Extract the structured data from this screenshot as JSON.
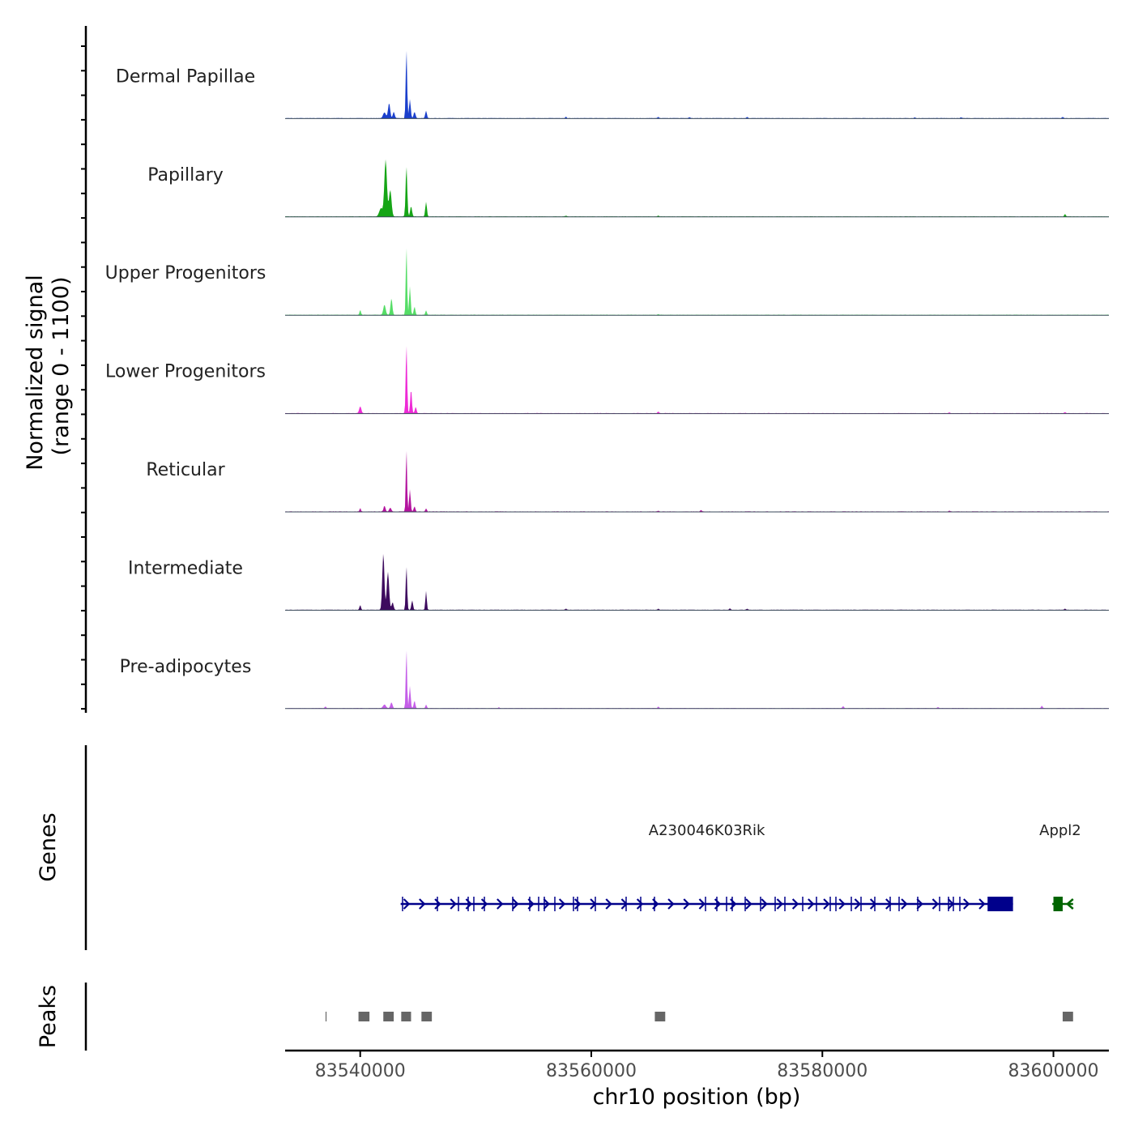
{
  "chart_data": {
    "type": "area",
    "title": "",
    "ylabel_line1": "Normalized signal",
    "ylabel_line2": "(range 0 - 1100)",
    "ylim": [
      0,
      1100
    ],
    "xlabel": "chr10 position (bp)",
    "xlim": [
      83533500,
      83604800
    ],
    "xticks": [
      83540000,
      83560000,
      83580000,
      83600000
    ],
    "xtick_labels": [
      "83540000",
      "83560000",
      "83580000",
      "83600000"
    ],
    "series": [
      {
        "name": "Dermal Papillae",
        "color": "#1a3fcc",
        "peaks": [
          [
            83542100,
            90,
            120
          ],
          [
            83542500,
            240,
            90
          ],
          [
            83542900,
            100,
            80
          ],
          [
            83544000,
            1100,
            60
          ],
          [
            83544300,
            300,
            70
          ],
          [
            83544700,
            100,
            80
          ],
          [
            83545700,
            120,
            70
          ]
        ],
        "minor": [
          [
            83557800,
            25
          ],
          [
            83565800,
            20
          ],
          [
            83568500,
            18
          ],
          [
            83573500,
            22
          ],
          [
            83588000,
            15
          ],
          [
            83592000,
            15
          ],
          [
            83600800,
            20
          ]
        ]
      },
      {
        "name": "Papillary",
        "color": "#16a516",
        "peaks": [
          [
            83541800,
            130,
            150
          ],
          [
            83542200,
            900,
            110
          ],
          [
            83542600,
            420,
            110
          ],
          [
            83544000,
            800,
            70
          ],
          [
            83544400,
            160,
            80
          ],
          [
            83545700,
            230,
            70
          ]
        ],
        "minor": [
          [
            83557800,
            15
          ],
          [
            83565800,
            18
          ],
          [
            83601000,
            40
          ]
        ]
      },
      {
        "name": "Upper Progenitors",
        "color": "#55dd66",
        "peaks": [
          [
            83540000,
            80,
            60
          ],
          [
            83542100,
            160,
            100
          ],
          [
            83542700,
            260,
            80
          ],
          [
            83544000,
            1100,
            55
          ],
          [
            83544300,
            450,
            65
          ],
          [
            83544700,
            130,
            70
          ],
          [
            83545700,
            70,
            60
          ]
        ],
        "minor": [
          [
            83565800,
            10
          ]
        ]
      },
      {
        "name": "Lower Progenitors",
        "color": "#ee2ad6",
        "peaks": [
          [
            83540000,
            110,
            90
          ],
          [
            83544000,
            1100,
            60
          ],
          [
            83544400,
            380,
            70
          ],
          [
            83544800,
            100,
            70
          ]
        ],
        "minor": [
          [
            83565800,
            25
          ],
          [
            83591000,
            12
          ],
          [
            83601000,
            15
          ]
        ]
      },
      {
        "name": "Reticular",
        "color": "#b3139e",
        "peaks": [
          [
            83540000,
            60,
            50
          ],
          [
            83542100,
            90,
            80
          ],
          [
            83542600,
            60,
            90
          ],
          [
            83544000,
            1000,
            55
          ],
          [
            83544300,
            350,
            65
          ],
          [
            83544700,
            80,
            70
          ],
          [
            83545700,
            50,
            60
          ]
        ],
        "minor": [
          [
            83565800,
            15
          ],
          [
            83569500,
            25
          ],
          [
            83591000,
            15
          ]
        ]
      },
      {
        "name": "Intermediate",
        "color": "#3d0a5e",
        "peaks": [
          [
            83540000,
            80,
            60
          ],
          [
            83542000,
            900,
            90
          ],
          [
            83542400,
            600,
            100
          ],
          [
            83542800,
            120,
            80
          ],
          [
            83544000,
            700,
            60
          ],
          [
            83544500,
            150,
            70
          ],
          [
            83545700,
            300,
            60
          ]
        ],
        "minor": [
          [
            83557800,
            20
          ],
          [
            83565800,
            20
          ],
          [
            83572000,
            25
          ],
          [
            83573500,
            20
          ],
          [
            83601000,
            20
          ]
        ]
      },
      {
        "name": "Pre-adipocytes",
        "color": "#c45ee8",
        "peaks": [
          [
            83542100,
            60,
            120
          ],
          [
            83542700,
            90,
            90
          ],
          [
            83544000,
            950,
            55
          ],
          [
            83544300,
            350,
            65
          ],
          [
            83544700,
            120,
            70
          ],
          [
            83545700,
            60,
            60
          ]
        ],
        "minor": [
          [
            83537000,
            25
          ],
          [
            83552000,
            15
          ],
          [
            83565800,
            25
          ],
          [
            83581800,
            30
          ],
          [
            83590000,
            20
          ],
          [
            83599000,
            40
          ]
        ]
      }
    ]
  },
  "genes_track": {
    "label": "Genes",
    "genes": [
      {
        "name": "A230046K03Rik",
        "start": 83543500,
        "end": 83596500,
        "strand": "+",
        "color": "#00008b",
        "exon_block": [
          83594300,
          83596500
        ]
      },
      {
        "name": "Appl2",
        "start": 83599900,
        "end": 83601700,
        "strand": "-",
        "color": "#006400",
        "exon_block": [
          83600000,
          83600800
        ]
      }
    ]
  },
  "peaks_track": {
    "label": "Peaks",
    "color": "#666666",
    "peaks": [
      [
        83537000,
        83537050
      ],
      [
        83539850,
        83540800
      ],
      [
        83542000,
        83542900
      ],
      [
        83543550,
        83544400
      ],
      [
        83545300,
        83546200
      ],
      [
        83565500,
        83566400
      ],
      [
        83600800,
        83601700
      ]
    ]
  }
}
